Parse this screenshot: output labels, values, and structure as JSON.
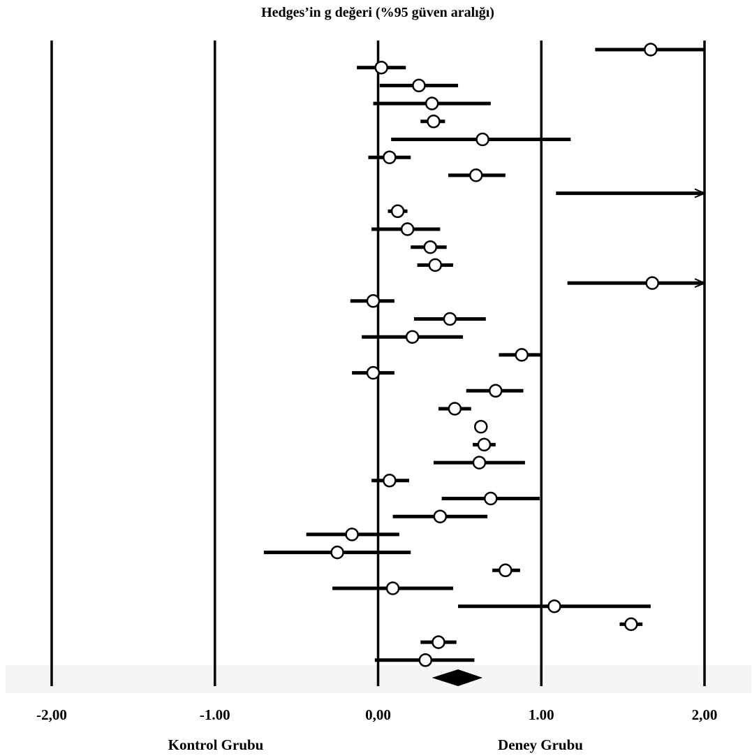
{
  "chart_data": {
    "type": "scatter",
    "subtype": "forest-plot",
    "title": "Hedges’in g değeri (%95 güven aralığı)",
    "xlim": [
      -2,
      2
    ],
    "x_tick_values": [
      -2,
      -1,
      0,
      1,
      2
    ],
    "x_tick_labels": [
      "-2,00",
      "-1.00",
      "0,00",
      "1.00",
      "2,00"
    ],
    "gridlines_at": [
      -2,
      -1,
      0,
      1,
      2
    ],
    "side_labels": {
      "left": "Kontrol Grubu",
      "right": "Deney Grubu"
    },
    "colors": {
      "ink": "#000000",
      "marker_fill": "#ffffff",
      "footer_band": "#f5f5f5"
    },
    "studies": [
      {
        "g": 1.67,
        "lower": 1.33,
        "upper": 2.0
      },
      {
        "g": 0.02,
        "lower": -0.13,
        "upper": 0.17
      },
      {
        "g": 0.25,
        "lower": 0.01,
        "upper": 0.49
      },
      {
        "g": 0.33,
        "lower": -0.03,
        "upper": 0.69
      },
      {
        "g": 0.34,
        "lower": 0.26,
        "upper": 0.41
      },
      {
        "g": 0.64,
        "lower": 0.08,
        "upper": 1.18
      },
      {
        "g": 0.07,
        "lower": -0.06,
        "upper": 0.2
      },
      {
        "g": 0.6,
        "lower": 0.43,
        "upper": 0.78,
        "whisker_start": 0.43
      },
      {
        "g": null,
        "lower": 1.09,
        "upper": 2.0,
        "truncated_right": true
      },
      {
        "g": 0.12,
        "lower": 0.06,
        "upper": 0.18
      },
      {
        "g": 0.18,
        "lower": -0.04,
        "upper": 0.38
      },
      {
        "g": 0.32,
        "lower": 0.2,
        "upper": 0.42
      },
      {
        "g": 0.35,
        "lower": 0.24,
        "upper": 0.46
      },
      {
        "g": 1.68,
        "lower": 1.16,
        "upper": 2.0,
        "truncated_right": true
      },
      {
        "g": -0.03,
        "lower": -0.17,
        "upper": 0.1
      },
      {
        "g": 0.44,
        "lower": 0.22,
        "upper": 0.66
      },
      {
        "g": 0.21,
        "lower": -0.1,
        "upper": 0.52
      },
      {
        "g": 0.88,
        "lower": 0.74,
        "upper": 1.0
      },
      {
        "g": -0.03,
        "lower": -0.16,
        "upper": 0.1
      },
      {
        "g": 0.72,
        "lower": 0.54,
        "upper": 0.89
      },
      {
        "g": 0.47,
        "lower": 0.37,
        "upper": 0.57
      },
      {
        "g": 0.63,
        "lower": 0.6,
        "upper": 0.67
      },
      {
        "g": 0.65,
        "lower": 0.58,
        "upper": 0.72
      },
      {
        "g": 0.62,
        "lower": 0.34,
        "upper": 0.9
      },
      {
        "g": 0.07,
        "lower": -0.04,
        "upper": 0.19
      },
      {
        "g": 0.69,
        "lower": 0.39,
        "upper": 0.99
      },
      {
        "g": 0.38,
        "lower": 0.09,
        "upper": 0.67
      },
      {
        "g": -0.16,
        "lower": -0.44,
        "upper": 0.13
      },
      {
        "g": -0.25,
        "lower": -0.7,
        "upper": 0.2
      },
      {
        "g": 0.78,
        "lower": 0.7,
        "upper": 0.87
      },
      {
        "g": 0.09,
        "lower": -0.28,
        "upper": 0.46
      },
      {
        "g": 1.08,
        "lower": 0.49,
        "upper": 1.67
      },
      {
        "g": 1.55,
        "lower": 1.48,
        "upper": 1.62
      },
      {
        "g": 0.37,
        "lower": 0.26,
        "upper": 0.48
      },
      {
        "g": 0.29,
        "lower": -0.02,
        "upper": 0.59
      }
    ],
    "summary": {
      "g": 0.49,
      "lower": 0.33,
      "upper": 0.64
    }
  }
}
